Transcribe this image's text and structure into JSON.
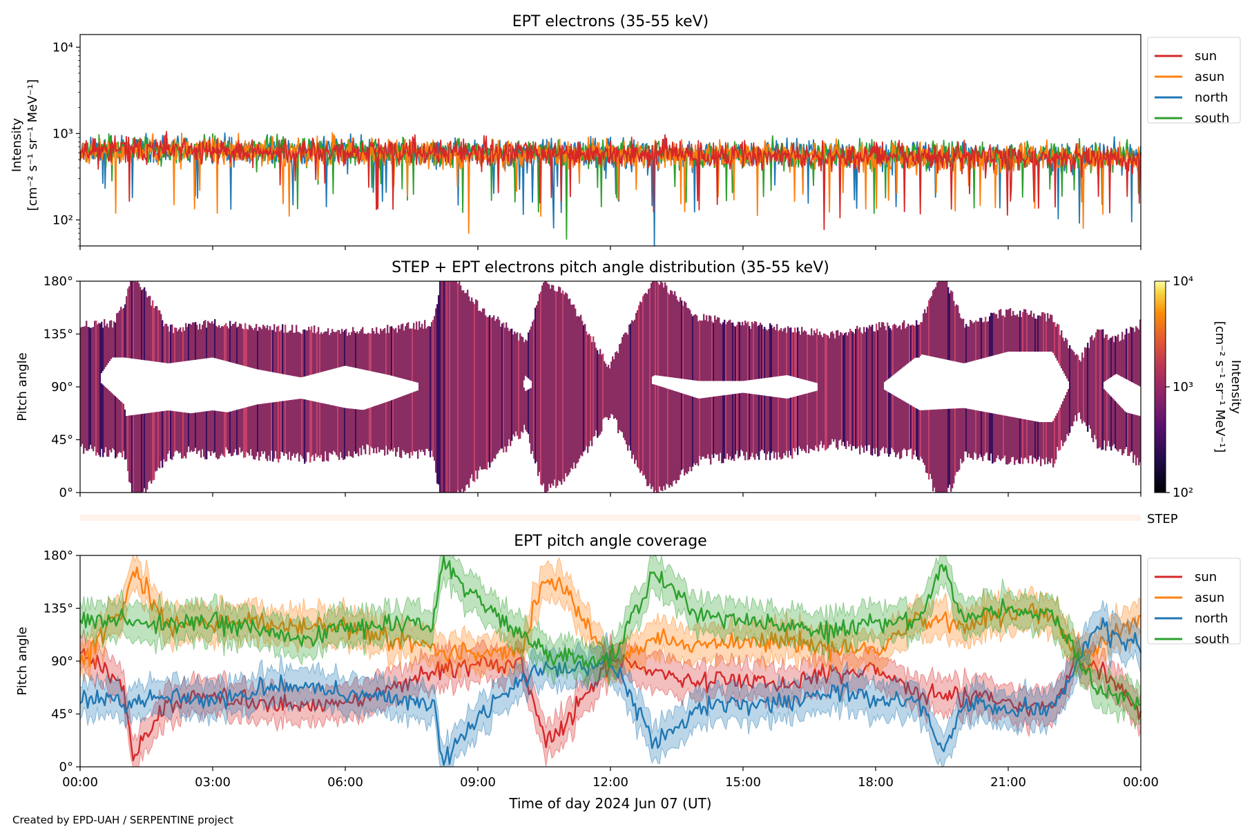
{
  "footer": "Created by EPD-UAH / SERPENTINE project",
  "colors": {
    "sun": "#d62728",
    "asun": "#ff7f0e",
    "north": "#1f77b4",
    "south": "#2ca02c",
    "pad_main": "#8a2d62",
    "pad_dark": "#3b0f5e",
    "pad_light": "#c2416b",
    "step_strip": "#fff1ec"
  },
  "chart_data": [
    {
      "id": "intensity",
      "type": "line",
      "title": "EPT electrons (35-55 keV)",
      "ylabel_line1": "Intensity",
      "ylabel_line2": "[cm⁻² s⁻¹ sr⁻¹ MeV⁻¹]",
      "yscale": "log",
      "ylim": [
        50,
        14000
      ],
      "yticks": [
        "10²",
        "10³",
        "10⁴"
      ],
      "xlim_hours": [
        0,
        24
      ],
      "legend_position": "outside-right",
      "series": [
        {
          "name": "sun",
          "typical": 650,
          "spread": 0.19,
          "seed": 11
        },
        {
          "name": "asun",
          "typical": 640,
          "spread": 0.21,
          "seed": 23
        },
        {
          "name": "north",
          "typical": 660,
          "spread": 0.22,
          "seed": 37
        },
        {
          "name": "south",
          "typical": 670,
          "spread": 0.2,
          "seed": 53
        }
      ],
      "notable_minima": [
        {
          "series": "asun",
          "hour": 8.8,
          "value": 70
        },
        {
          "series": "south",
          "hour": 11.0,
          "value": 60
        },
        {
          "series": "north",
          "hour": 13.0,
          "value": 50
        },
        {
          "series": "north",
          "hour": 23.8,
          "value": 95
        }
      ]
    },
    {
      "id": "pad",
      "type": "heatmap",
      "title": "STEP + EPT electrons pitch angle distribution (35-55 keV)",
      "ylabel": "Pitch angle",
      "ylim_deg": [
        0,
        180
      ],
      "yticks": [
        "0°",
        "45°",
        "90°",
        "135°",
        "180°"
      ],
      "colorbar": {
        "label_line1": "Intensity",
        "label_line2": "[cm⁻² s⁻¹ sr⁻¹ MeV⁻¹]",
        "scale": "log",
        "range": [
          100,
          10000
        ],
        "ticks": [
          "10²",
          "10³",
          "10⁴"
        ],
        "colormap": "inferno"
      },
      "step_strip_label": "STEP"
    },
    {
      "id": "coverage",
      "type": "line",
      "title": "EPT pitch angle coverage",
      "ylabel": "Pitch angle",
      "xlabel": "Time of day 2024 Jun 07 (UT)",
      "ylim_deg": [
        0,
        180
      ],
      "yticks": [
        "0°",
        "45°",
        "90°",
        "135°",
        "180°"
      ],
      "xticks": [
        "00:00",
        "03:00",
        "06:00",
        "09:00",
        "12:00",
        "15:00",
        "18:00",
        "21:00",
        "00:00"
      ],
      "legend_position": "outside-right",
      "series": [
        {
          "name": "sun",
          "hours": [
            0,
            1,
            1.2,
            2,
            3,
            4,
            5,
            6,
            7,
            8,
            9,
            10,
            10.5,
            11,
            12,
            13,
            14,
            15,
            16,
            17,
            18,
            19,
            20,
            21,
            22,
            22.5,
            23,
            24
          ],
          "pitch_deg": [
            100,
            65,
            10,
            55,
            60,
            55,
            52,
            55,
            68,
            82,
            88,
            85,
            25,
            35,
            90,
            82,
            70,
            75,
            70,
            80,
            82,
            60,
            62,
            55,
            48,
            90,
            85,
            45
          ]
        },
        {
          "name": "asun",
          "hours": [
            0,
            1,
            1.2,
            2,
            3,
            4,
            5,
            6,
            7,
            8,
            9,
            10,
            10.5,
            11,
            12,
            13,
            14,
            15,
            16,
            17,
            18,
            19,
            20,
            21,
            22,
            22.5,
            23,
            24
          ],
          "pitch_deg": [
            85,
            140,
            168,
            120,
            125,
            122,
            120,
            118,
            110,
            100,
            95,
            100,
            160,
            150,
            85,
            110,
            105,
            105,
            110,
            100,
            98,
            128,
            120,
            130,
            130,
            95,
            100,
            125
          ]
        },
        {
          "name": "north",
          "hours": [
            0,
            1,
            2,
            3,
            4,
            5,
            6,
            7,
            8,
            8.2,
            9,
            10,
            10.5,
            11,
            12,
            13,
            14,
            15,
            16,
            17,
            18,
            19,
            19.5,
            20,
            21,
            22,
            23,
            24
          ],
          "pitch_deg": [
            60,
            55,
            60,
            55,
            65,
            70,
            62,
            58,
            55,
            5,
            40,
            75,
            85,
            80,
            90,
            20,
            50,
            55,
            55,
            65,
            58,
            55,
            10,
            55,
            50,
            50,
            120,
            100
          ]
        },
        {
          "name": "south",
          "hours": [
            0,
            1,
            2,
            3,
            4,
            5,
            6,
            7,
            8,
            8.2,
            9,
            10,
            10.5,
            11,
            12,
            13,
            14,
            15,
            16,
            17,
            18,
            19,
            19.5,
            20,
            21,
            22,
            23,
            24
          ],
          "pitch_deg": [
            125,
            125,
            120,
            125,
            115,
            108,
            118,
            120,
            125,
            175,
            140,
            112,
            95,
            95,
            90,
            165,
            130,
            125,
            120,
            115,
            122,
            125,
            170,
            125,
            135,
            130,
            65,
            55
          ]
        }
      ]
    }
  ]
}
